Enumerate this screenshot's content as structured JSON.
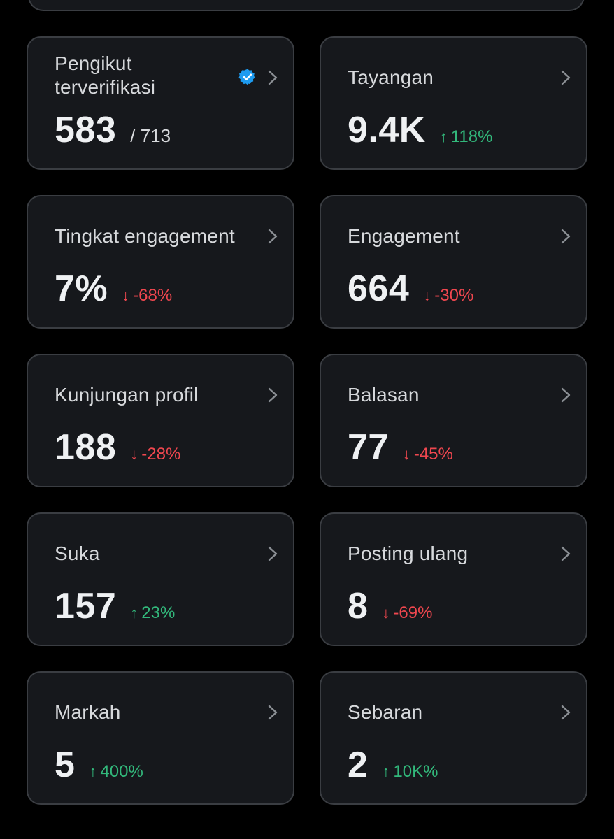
{
  "cards": [
    {
      "title": "Pengikut terverifikasi",
      "value": "583",
      "denominator": "/ 713",
      "verified": true
    },
    {
      "title": "Tayangan",
      "value": "9.4K",
      "delta": "118%",
      "direction": "up"
    },
    {
      "title": "Tingkat engagement",
      "value": "7%",
      "delta": "-68%",
      "direction": "down"
    },
    {
      "title": "Engagement",
      "value": "664",
      "delta": "-30%",
      "direction": "down"
    },
    {
      "title": "Kunjungan profil",
      "value": "188",
      "delta": "-28%",
      "direction": "down"
    },
    {
      "title": "Balasan",
      "value": "77",
      "delta": "-45%",
      "direction": "down"
    },
    {
      "title": "Suka",
      "value": "157",
      "delta": "23%",
      "direction": "up"
    },
    {
      "title": "Posting ulang",
      "value": "8",
      "delta": "-69%",
      "direction": "down"
    },
    {
      "title": "Markah",
      "value": "5",
      "delta": "400%",
      "direction": "up"
    },
    {
      "title": "Sebaran",
      "value": "2",
      "delta": "10K%",
      "direction": "up"
    }
  ],
  "icons": {
    "up": "arrow-up-icon",
    "down": "arrow-down-icon",
    "chevron": "chevron-right-icon",
    "verified": "verified-badge-icon"
  },
  "colors": {
    "background": "#000000",
    "card": "#16181c",
    "border": "#3a3d42",
    "up": "#32b87b",
    "down": "#f0474f",
    "verified": "#1d9bf0"
  }
}
